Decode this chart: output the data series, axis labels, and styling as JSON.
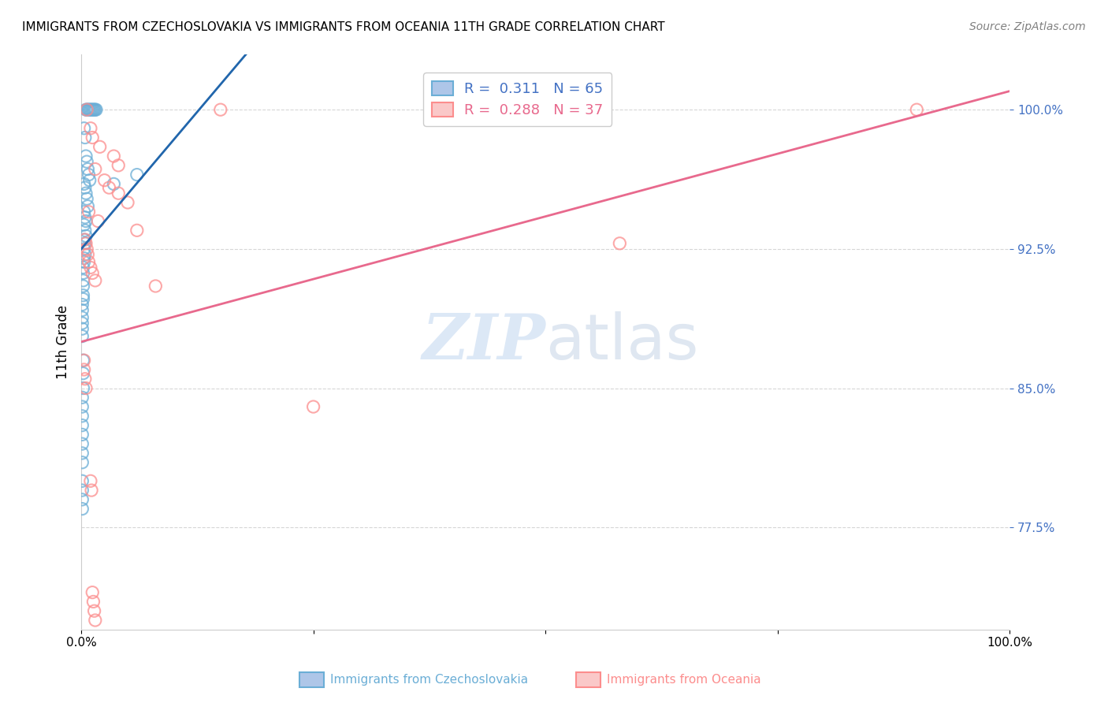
{
  "title": "IMMIGRANTS FROM CZECHOSLOVAKIA VS IMMIGRANTS FROM OCEANIA 11TH GRADE CORRELATION CHART",
  "source": "Source: ZipAtlas.com",
  "ylabel": "11th Grade",
  "ytick_labels": [
    "100.0%",
    "92.5%",
    "85.0%",
    "77.5%"
  ],
  "ytick_values": [
    1.0,
    0.925,
    0.85,
    0.775
  ],
  "xlim": [
    0.0,
    1.0
  ],
  "ylim": [
    0.72,
    1.03
  ],
  "R_blue": 0.311,
  "N_blue": 65,
  "R_pink": 0.288,
  "N_pink": 37,
  "legend_label_blue": "Immigrants from Czechoslovakia",
  "legend_label_pink": "Immigrants from Oceania",
  "blue_color": "#6baed6",
  "pink_color": "#fc8d8d",
  "blue_line_color": "#2166ac",
  "pink_line_color": "#e8698d",
  "blue_scatter": [
    [
      0.005,
      1.0
    ],
    [
      0.006,
      1.0
    ],
    [
      0.007,
      1.0
    ],
    [
      0.008,
      1.0
    ],
    [
      0.009,
      1.0
    ],
    [
      0.01,
      1.0
    ],
    [
      0.011,
      1.0
    ],
    [
      0.012,
      1.0
    ],
    [
      0.013,
      1.0
    ],
    [
      0.014,
      1.0
    ],
    [
      0.015,
      1.0
    ],
    [
      0.016,
      1.0
    ],
    [
      0.003,
      0.99
    ],
    [
      0.004,
      0.985
    ],
    [
      0.005,
      0.975
    ],
    [
      0.006,
      0.972
    ],
    [
      0.007,
      0.968
    ],
    [
      0.008,
      0.965
    ],
    [
      0.009,
      0.962
    ],
    [
      0.003,
      0.96
    ],
    [
      0.004,
      0.958
    ],
    [
      0.005,
      0.955
    ],
    [
      0.006,
      0.952
    ],
    [
      0.007,
      0.948
    ],
    [
      0.003,
      0.945
    ],
    [
      0.004,
      0.942
    ],
    [
      0.005,
      0.94
    ],
    [
      0.003,
      0.938
    ],
    [
      0.004,
      0.935
    ],
    [
      0.005,
      0.932
    ],
    [
      0.003,
      0.93
    ],
    [
      0.004,
      0.928
    ],
    [
      0.003,
      0.925
    ],
    [
      0.004,
      0.922
    ],
    [
      0.003,
      0.92
    ],
    [
      0.003,
      0.918
    ],
    [
      0.002,
      0.915
    ],
    [
      0.002,
      0.912
    ],
    [
      0.002,
      0.908
    ],
    [
      0.002,
      0.905
    ],
    [
      0.002,
      0.9
    ],
    [
      0.002,
      0.898
    ],
    [
      0.001,
      0.895
    ],
    [
      0.001,
      0.892
    ],
    [
      0.001,
      0.888
    ],
    [
      0.001,
      0.885
    ],
    [
      0.001,
      0.882
    ],
    [
      0.001,
      0.878
    ],
    [
      0.035,
      0.96
    ],
    [
      0.06,
      0.965
    ],
    [
      0.002,
      0.865
    ],
    [
      0.002,
      0.858
    ],
    [
      0.002,
      0.85
    ],
    [
      0.001,
      0.845
    ],
    [
      0.001,
      0.84
    ],
    [
      0.001,
      0.835
    ],
    [
      0.001,
      0.83
    ],
    [
      0.001,
      0.825
    ],
    [
      0.001,
      0.82
    ],
    [
      0.001,
      0.815
    ],
    [
      0.001,
      0.81
    ],
    [
      0.001,
      0.8
    ],
    [
      0.001,
      0.795
    ],
    [
      0.001,
      0.79
    ],
    [
      0.001,
      0.785
    ]
  ],
  "pink_scatter": [
    [
      0.006,
      1.0
    ],
    [
      0.15,
      1.0
    ],
    [
      0.9,
      1.0
    ],
    [
      0.01,
      0.99
    ],
    [
      0.012,
      0.985
    ],
    [
      0.02,
      0.98
    ],
    [
      0.035,
      0.975
    ],
    [
      0.04,
      0.97
    ],
    [
      0.015,
      0.968
    ],
    [
      0.025,
      0.962
    ],
    [
      0.03,
      0.958
    ],
    [
      0.04,
      0.955
    ],
    [
      0.05,
      0.95
    ],
    [
      0.008,
      0.945
    ],
    [
      0.018,
      0.94
    ],
    [
      0.06,
      0.935
    ],
    [
      0.004,
      0.93
    ],
    [
      0.005,
      0.928
    ],
    [
      0.006,
      0.925
    ],
    [
      0.007,
      0.922
    ],
    [
      0.008,
      0.918
    ],
    [
      0.01,
      0.915
    ],
    [
      0.012,
      0.912
    ],
    [
      0.015,
      0.908
    ],
    [
      0.08,
      0.905
    ],
    [
      0.58,
      0.928
    ],
    [
      0.003,
      0.865
    ],
    [
      0.003,
      0.86
    ],
    [
      0.004,
      0.855
    ],
    [
      0.005,
      0.85
    ],
    [
      0.25,
      0.84
    ],
    [
      0.01,
      0.8
    ],
    [
      0.011,
      0.795
    ],
    [
      0.012,
      0.74
    ],
    [
      0.013,
      0.735
    ],
    [
      0.014,
      0.73
    ],
    [
      0.015,
      0.725
    ]
  ],
  "watermark_zip": "ZIP",
  "watermark_atlas": "atlas",
  "background_color": "#ffffff",
  "grid_color": "#cccccc",
  "blue_line_x": [
    0.0,
    0.22
  ],
  "blue_line_y": [
    0.925,
    1.055
  ],
  "pink_line_x": [
    0.0,
    1.0
  ],
  "pink_line_y": [
    0.875,
    1.01
  ]
}
